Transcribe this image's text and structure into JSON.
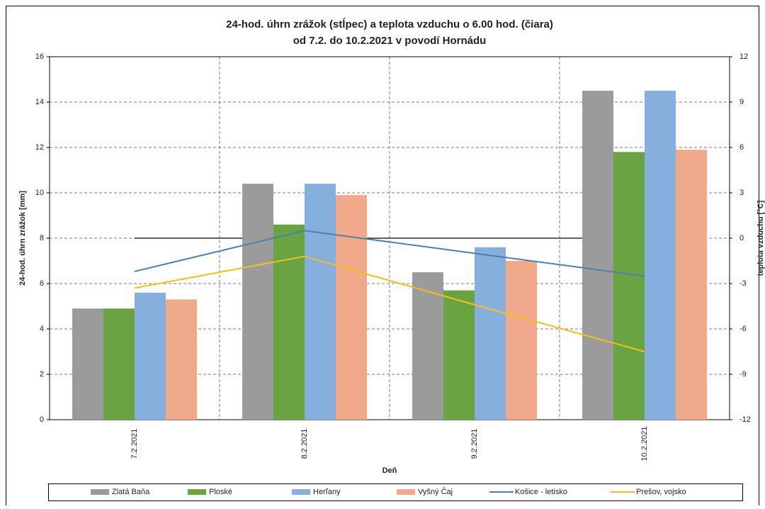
{
  "chart_data": {
    "type": "bar",
    "title": [
      "24-hod. úhrn zrážok (stĺpec) a teplota vzduchu o 6.00 hod. (čiara)",
      "od 7.2. do 10.2.2021 v povodí  Hornádu"
    ],
    "x_label": "Deň",
    "y_label": "24-hod. úhrn zrážok [mm]",
    "y2_label": "teplota vzduchu [°C]",
    "categories": [
      "7.2.2021",
      "8.2.2021",
      "9.2.2021",
      "10.2.2021"
    ],
    "series": [
      {
        "name": "Zlatá Baňa",
        "color": "#9b9b9b",
        "values": [
          4.9,
          10.4,
          6.5,
          14.5
        ]
      },
      {
        "name": "Ploské",
        "color": "#6aa341",
        "values": [
          4.9,
          8.6,
          5.7,
          11.8
        ]
      },
      {
        "name": "Herľany",
        "color": "#86afdd",
        "values": [
          5.6,
          10.4,
          7.6,
          14.5
        ]
      },
      {
        "name": "Vyšný Čaj",
        "color": "#f0a98a",
        "values": [
          5.3,
          9.9,
          7.0,
          11.9
        ]
      },
      {
        "name": "Košice - letisko",
        "color": "#4e7fae",
        "type": "line",
        "axis": "y2",
        "values": [
          -2.2,
          0.5,
          -1.0,
          -2.5
        ]
      },
      {
        "name": "Prešov, vojsko",
        "color": "#f5bf1a",
        "type": "line",
        "axis": "y2",
        "values": [
          -3.3,
          -1.2,
          -4.4,
          -7.5
        ]
      }
    ],
    "ylim": [
      0,
      16
    ],
    "yticks": [
      0,
      2,
      4,
      6,
      8,
      10,
      12,
      14,
      16
    ],
    "y2lim": [
      -12,
      12
    ],
    "y2ticks": [
      -12,
      -9,
      -6,
      -3,
      0,
      3,
      6,
      9,
      12
    ],
    "grid": true,
    "legend": "bottom"
  }
}
